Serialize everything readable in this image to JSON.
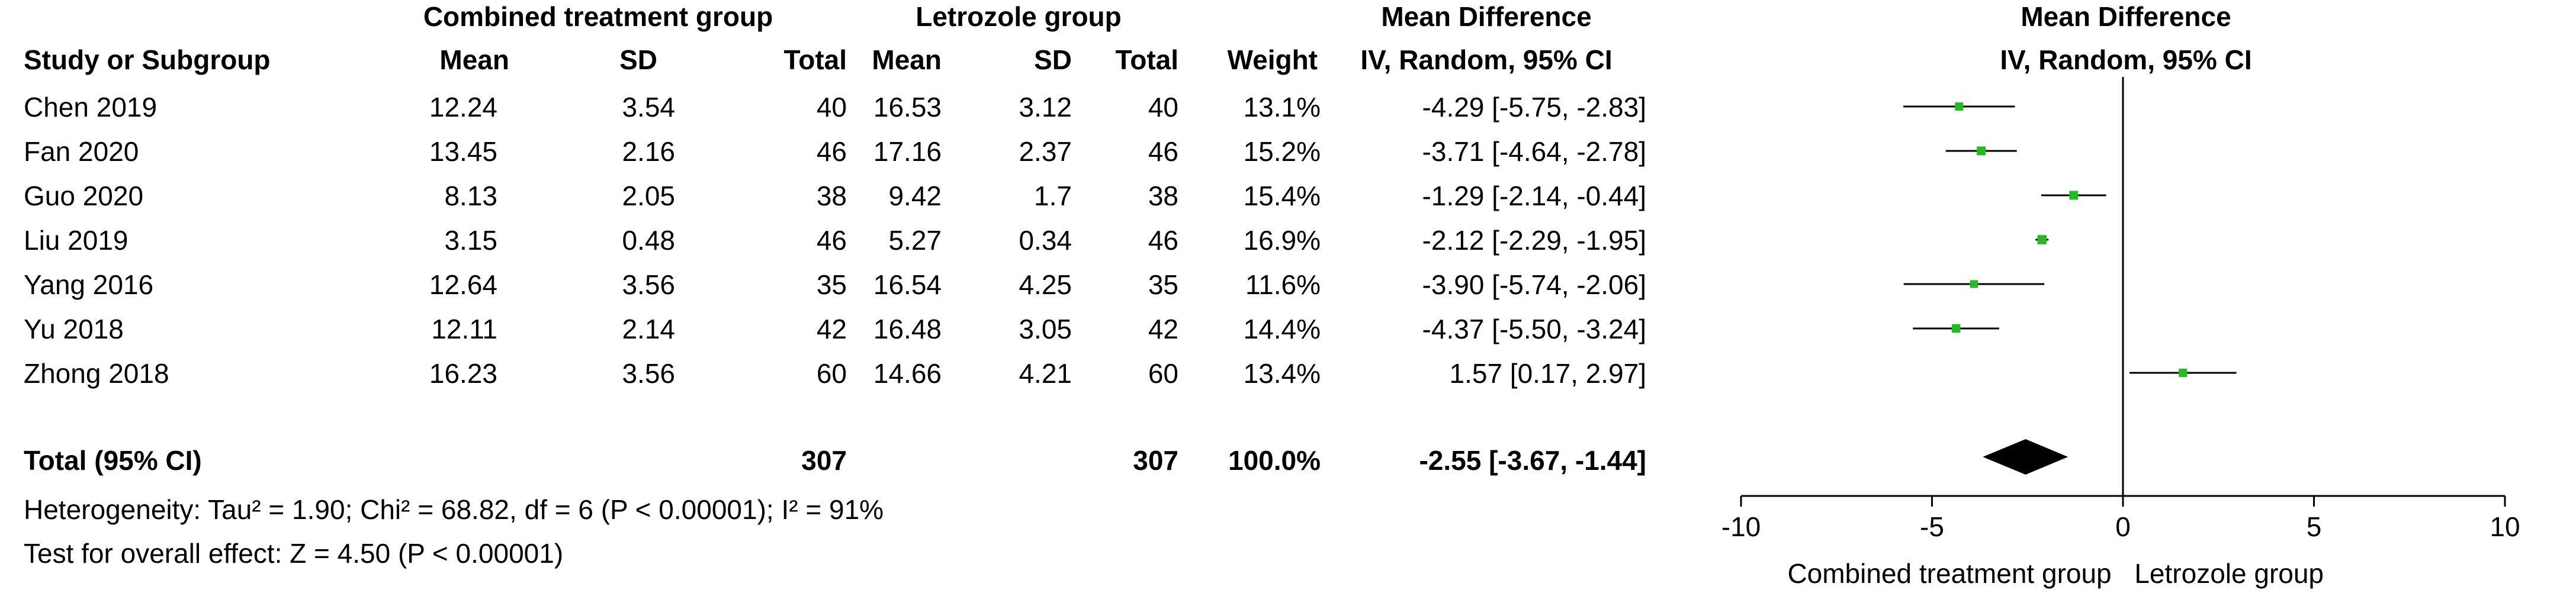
{
  "header": {
    "group1": "Combined treatment group",
    "group2": "Letrozole group",
    "md_title": "Mean Difference",
    "plot_title": "Mean Difference",
    "col_study": "Study or Subgroup",
    "col_mean1": "Mean",
    "col_sd1": "SD",
    "col_total1": "Total",
    "col_mean2": "Mean",
    "col_sd2": "SD",
    "col_total2": "Total",
    "col_weight": "Weight",
    "col_ci": "IV, Random, 95% CI",
    "plot_subtitle": "IV, Random, 95% CI"
  },
  "rows": [
    {
      "study": "Chen 2019",
      "mean1": "12.24",
      "sd1": "3.54",
      "total1": "40",
      "mean2": "16.53",
      "sd2": "3.12",
      "total2": "40",
      "weight": "13.1%",
      "ci": "-4.29 [-5.75, -2.83]"
    },
    {
      "study": "Fan 2020",
      "mean1": "13.45",
      "sd1": "2.16",
      "total1": "46",
      "mean2": "17.16",
      "sd2": "2.37",
      "total2": "46",
      "weight": "15.2%",
      "ci": "-3.71 [-4.64, -2.78]"
    },
    {
      "study": "Guo 2020",
      "mean1": "8.13",
      "sd1": "2.05",
      "total1": "38",
      "mean2": "9.42",
      "sd2": "1.7",
      "total2": "38",
      "weight": "15.4%",
      "ci": "-1.29 [-2.14, -0.44]"
    },
    {
      "study": "Liu 2019",
      "mean1": "3.15",
      "sd1": "0.48",
      "total1": "46",
      "mean2": "5.27",
      "sd2": "0.34",
      "total2": "46",
      "weight": "16.9%",
      "ci": "-2.12 [-2.29, -1.95]"
    },
    {
      "study": "Yang 2016",
      "mean1": "12.64",
      "sd1": "3.56",
      "total1": "35",
      "mean2": "16.54",
      "sd2": "4.25",
      "total2": "35",
      "weight": "11.6%",
      "ci": "-3.90 [-5.74, -2.06]"
    },
    {
      "study": "Yu 2018",
      "mean1": "12.11",
      "sd1": "2.14",
      "total1": "42",
      "mean2": "16.48",
      "sd2": "3.05",
      "total2": "42",
      "weight": "14.4%",
      "ci": "-4.37 [-5.50, -3.24]"
    },
    {
      "study": "Zhong 2018",
      "mean1": "16.23",
      "sd1": "3.56",
      "total1": "60",
      "mean2": "14.66",
      "sd2": "4.21",
      "total2": "60",
      "weight": "13.4%",
      "ci": "1.57 [0.17, 2.97]"
    }
  ],
  "total": {
    "label": "Total (95% CI)",
    "total1": "307",
    "total2": "307",
    "weight": "100.0%",
    "ci": "-2.55 [-3.67, -1.44]"
  },
  "footer": {
    "heterogeneity": "Heterogeneity: Tau² = 1.90; Chi² = 68.82, df = 6 (P < 0.00001); I² = 91%",
    "overall": "Test for overall effect: Z = 4.50 (P < 0.00001)",
    "favours_left": "Combined treatment group",
    "favours_right": "Letrozole group"
  },
  "colors": {
    "study_marker": "#22bb22",
    "summary": "#000000"
  },
  "chart_data": {
    "type": "forest",
    "xlim": [
      -10,
      10
    ],
    "xticks": [
      "-10",
      "-5",
      "0",
      "5",
      "10"
    ],
    "xtick_values": [
      -10,
      -5,
      0,
      5,
      10
    ],
    "studies": [
      {
        "name": "Chen 2019",
        "md": -4.29,
        "lo": -5.75,
        "hi": -2.83,
        "weight": 13.1
      },
      {
        "name": "Fan 2020",
        "md": -3.71,
        "lo": -4.64,
        "hi": -2.78,
        "weight": 15.2
      },
      {
        "name": "Guo 2020",
        "md": -1.29,
        "lo": -2.14,
        "hi": -0.44,
        "weight": 15.4
      },
      {
        "name": "Liu 2019",
        "md": -2.12,
        "lo": -2.29,
        "hi": -1.95,
        "weight": 16.9
      },
      {
        "name": "Yang 2016",
        "md": -3.9,
        "lo": -5.74,
        "hi": -2.06,
        "weight": 11.6
      },
      {
        "name": "Yu 2018",
        "md": -4.37,
        "lo": -5.5,
        "hi": -3.24,
        "weight": 14.4
      },
      {
        "name": "Zhong 2018",
        "md": 1.57,
        "lo": 0.17,
        "hi": 2.97,
        "weight": 13.4
      }
    ],
    "summary": {
      "md": -2.55,
      "lo": -3.67,
      "hi": -1.44
    }
  }
}
